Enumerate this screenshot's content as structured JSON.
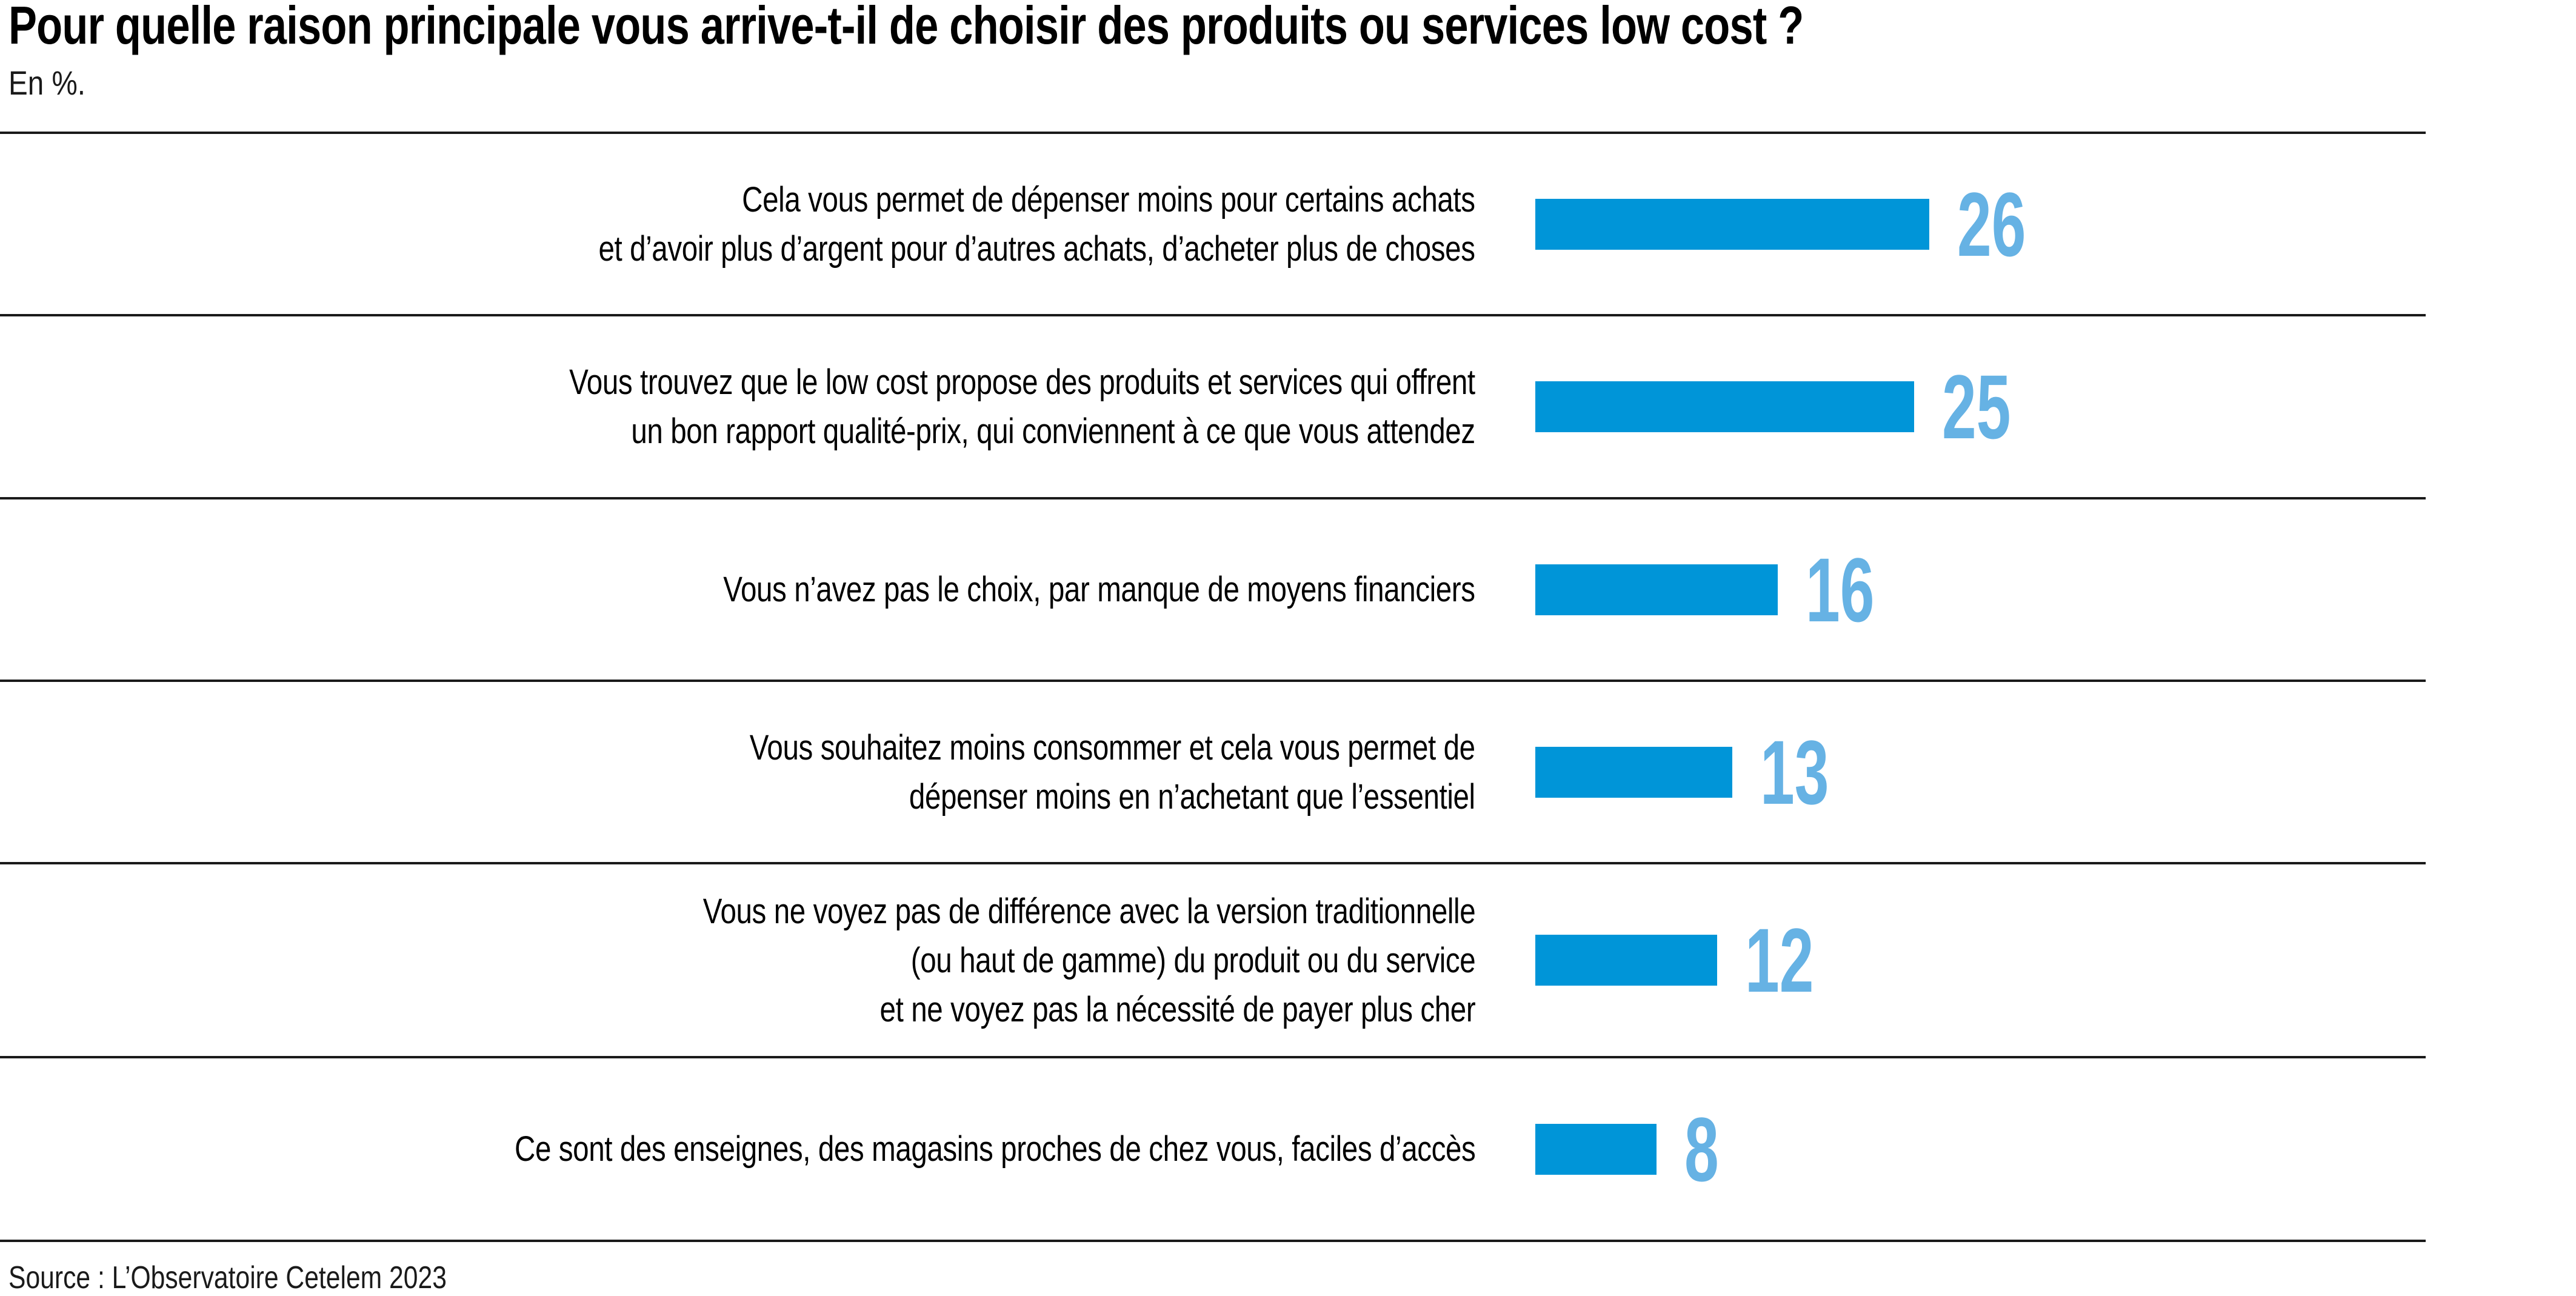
{
  "header": {
    "title": "Pour quelle raison principale vous arrive-t-il de choisir des produits ou services low cost ?",
    "subtitle": "En %."
  },
  "footer": {
    "source": "Source : L’Observatoire Cetelem 2023"
  },
  "colors": {
    "bar": "#0095D8",
    "value_label": "#66B2E4",
    "divider": "#1a1a1a",
    "text": "#000000"
  },
  "chart_data": {
    "type": "bar",
    "orientation": "horizontal",
    "title": "Pour quelle raison principale vous arrive-t-il de choisir des produits ou services low cost ?",
    "unit": "%",
    "categories": [
      "Cela vous permet de dépenser moins pour certains achats et d’avoir plus d’argent pour d’autres achats, d’acheter plus de choses",
      "Vous trouvez que le low cost propose des produits et services qui offrent un bon rapport qualité-prix, qui conviennent à ce que vous attendez",
      "Vous n’avez pas le choix, par manque de moyens financiers",
      "Vous souhaitez moins consommer et cela vous permet de dépenser moins en n’achetant que l’essentiel",
      "Vous ne voyez pas de différence avec la version traditionnelle (ou haut de gamme) du produit ou du service et ne voyez pas la nécessité de payer plus cher",
      "Ce sont des enseignes, des magasins proches de chez vous, faciles d’accès"
    ],
    "values": [
      26,
      25,
      16,
      13,
      12,
      8
    ],
    "xlim": [
      0,
      26
    ],
    "grid": false,
    "legend": false,
    "value_labels": "end-of-bar"
  },
  "rows": [
    {
      "lines": [
        "Cela vous permet de dépenser moins pour certains achats",
        "et d’avoir plus d’argent pour d’autres achats, d’acheter plus de choses"
      ]
    },
    {
      "lines": [
        "Vous trouvez que le low cost propose des produits et services qui offrent",
        "un bon rapport qualité-prix, qui conviennent à ce que vous attendez"
      ]
    },
    {
      "lines": [
        "Vous n’avez pas le choix, par manque de moyens financiers"
      ]
    },
    {
      "lines": [
        "Vous souhaitez moins consommer et cela vous permet de",
        "dépenser moins en n’achetant que l’essentiel"
      ]
    },
    {
      "lines": [
        "Vous ne voyez pas de différence avec la version traditionnelle",
        "(ou haut de gamme) du produit ou du service",
        "et ne voyez pas la nécessité de payer plus cher"
      ]
    },
    {
      "lines": [
        "Ce sont des enseignes, des magasins proches de chez vous, faciles d’accès"
      ]
    }
  ]
}
